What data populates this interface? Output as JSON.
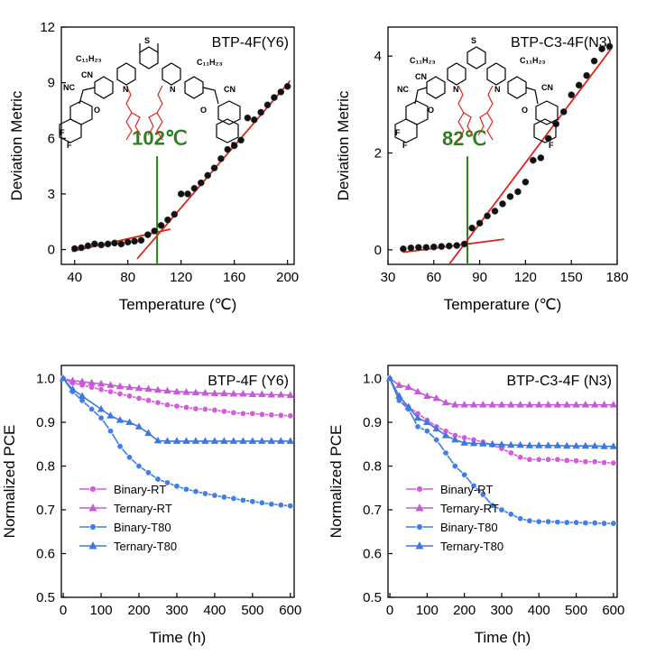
{
  "colors": {
    "fit_line": "#e0241b",
    "threshold_line": "#2e7d1e",
    "dots": "#111111",
    "binary_rt": "#d65bdc",
    "ternary_rt": "#c55ad8",
    "binary_t80": "#3f7fe6",
    "ternary_t80": "#3d78e0"
  },
  "molecules": {
    "y6": {
      "alkyl": "C₁₁H₂₃",
      "cn": "CN",
      "nc": "NC",
      "s": "S",
      "n": "N",
      "o": "O",
      "f": "F"
    },
    "n3": {
      "alkyl": "C₁₁H₂₃",
      "cn": "CN",
      "nc": "NC",
      "s": "S",
      "n": "N",
      "o": "O",
      "f": "F"
    }
  },
  "chart_data": [
    {
      "id": "dm-y6",
      "type": "scatter",
      "title": "BTP-4F(Y6)",
      "xlabel": "Temperature (℃)",
      "ylabel": "Deviation Metric",
      "xlim": [
        30,
        205
      ],
      "ylim": [
        -0.8,
        12
      ],
      "xticks": [
        40,
        80,
        120,
        160,
        200
      ],
      "yticks": [
        0,
        3,
        6,
        9,
        12
      ],
      "annotation": "102℃",
      "threshold_x": 102,
      "x": [
        40,
        45,
        50,
        55,
        60,
        65,
        70,
        75,
        80,
        85,
        90,
        95,
        100,
        105,
        110,
        115,
        120,
        125,
        130,
        135,
        140,
        145,
        150,
        155,
        160,
        165,
        170,
        175,
        180,
        185,
        190,
        195,
        200
      ],
      "y": [
        0.05,
        0.1,
        0.2,
        0.3,
        0.25,
        0.3,
        0.35,
        0.3,
        0.4,
        0.45,
        0.5,
        0.8,
        1.0,
        1.3,
        1.6,
        1.9,
        3.0,
        3.0,
        3.3,
        3.6,
        4.0,
        4.4,
        4.9,
        5.4,
        5.6,
        5.9,
        7.1,
        7.0,
        7.4,
        7.8,
        8.2,
        8.5,
        8.8
      ],
      "fit_lines": [
        {
          "x": [
            38,
            112
          ],
          "y": [
            -0.1,
            1.1
          ]
        },
        {
          "x": [
            87,
            202
          ],
          "y": [
            -0.5,
            9.1
          ]
        }
      ]
    },
    {
      "id": "dm-n3",
      "type": "scatter",
      "title": "BTP-C3-4F(N3)",
      "xlabel": "Temperature (℃)",
      "ylabel": "Deviation Metric",
      "xlim": [
        30,
        180
      ],
      "ylim": [
        -0.3,
        4.6
      ],
      "xticks": [
        30,
        60,
        90,
        120,
        150,
        180
      ],
      "yticks": [
        0,
        2,
        4
      ],
      "annotation": "82℃",
      "threshold_x": 82,
      "x": [
        40,
        45,
        50,
        55,
        60,
        65,
        70,
        75,
        80,
        85,
        90,
        95,
        100,
        105,
        110,
        115,
        120,
        125,
        130,
        135,
        140,
        145,
        150,
        155,
        160,
        165,
        170,
        175
      ],
      "y": [
        0.02,
        0.04,
        0.05,
        0.05,
        0.06,
        0.07,
        0.08,
        0.09,
        0.12,
        0.45,
        0.55,
        0.7,
        0.8,
        0.95,
        1.1,
        1.2,
        1.4,
        1.85,
        1.9,
        2.3,
        2.6,
        2.85,
        3.2,
        3.4,
        3.6,
        3.9,
        4.15,
        4.2
      ],
      "fit_lines": [
        {
          "x": [
            40,
            106
          ],
          "y": [
            -0.05,
            0.22
          ]
        },
        {
          "x": [
            70,
            176
          ],
          "y": [
            -0.3,
            4.15
          ]
        }
      ]
    },
    {
      "id": "pce-y6",
      "type": "line",
      "title": "BTP-4F (Y6)",
      "xlabel": "Time (h)",
      "ylabel": "Normalized PCE",
      "xlim": [
        -5,
        610
      ],
      "ylim": [
        0.5,
        1.03
      ],
      "xticks": [
        0,
        100,
        200,
        300,
        400,
        500,
        600
      ],
      "yticks": [
        0.5,
        0.6,
        0.7,
        0.8,
        0.9,
        1.0
      ],
      "series": [
        {
          "name": "Binary-RT",
          "marker": "circle",
          "color_key": "binary_rt",
          "x": [
            0,
            25,
            50,
            75,
            100,
            125,
            150,
            175,
            200,
            225,
            250,
            275,
            300,
            325,
            350,
            375,
            400,
            425,
            450,
            475,
            500,
            525,
            550,
            575,
            600
          ],
          "y": [
            1.0,
            0.99,
            0.985,
            0.98,
            0.975,
            0.97,
            0.965,
            0.96,
            0.955,
            0.95,
            0.945,
            0.94,
            0.937,
            0.934,
            0.931,
            0.93,
            0.928,
            0.925,
            0.922,
            0.92,
            0.92,
            0.918,
            0.917,
            0.916,
            0.915
          ]
        },
        {
          "name": "Ternary-RT",
          "marker": "triangle",
          "color_key": "ternary_rt",
          "x": [
            0,
            25,
            50,
            75,
            100,
            125,
            150,
            175,
            200,
            225,
            250,
            275,
            300,
            325,
            350,
            375,
            400,
            425,
            450,
            475,
            500,
            525,
            550,
            575,
            600
          ],
          "y": [
            1.0,
            0.995,
            0.993,
            0.99,
            0.988,
            0.985,
            0.982,
            0.98,
            0.978,
            0.976,
            0.974,
            0.972,
            0.97,
            0.969,
            0.968,
            0.967,
            0.966,
            0.966,
            0.965,
            0.965,
            0.964,
            0.964,
            0.963,
            0.963,
            0.962
          ]
        },
        {
          "name": "Binary-T80",
          "marker": "circle",
          "color_key": "binary_t80",
          "x": [
            0,
            25,
            50,
            75,
            100,
            125,
            150,
            175,
            200,
            225,
            250,
            275,
            300,
            325,
            350,
            375,
            400,
            425,
            450,
            475,
            500,
            525,
            550,
            575,
            600
          ],
          "y": [
            1.0,
            0.97,
            0.95,
            0.93,
            0.91,
            0.88,
            0.845,
            0.82,
            0.8,
            0.785,
            0.77,
            0.762,
            0.754,
            0.747,
            0.742,
            0.737,
            0.733,
            0.729,
            0.726,
            0.722,
            0.719,
            0.716,
            0.713,
            0.711,
            0.709
          ]
        },
        {
          "name": "Ternary-T80",
          "marker": "triangle",
          "color_key": "ternary_t80",
          "x": [
            0,
            25,
            50,
            100,
            125,
            150,
            175,
            200,
            225,
            250,
            275,
            300,
            325,
            350,
            375,
            400,
            425,
            450,
            475,
            500,
            525,
            550,
            575,
            600
          ],
          "y": [
            1.0,
            0.975,
            0.96,
            0.93,
            0.915,
            0.905,
            0.9,
            0.89,
            0.875,
            0.858,
            0.857,
            0.857,
            0.857,
            0.857,
            0.857,
            0.857,
            0.857,
            0.857,
            0.857,
            0.857,
            0.857,
            0.857,
            0.857,
            0.857
          ]
        }
      ]
    },
    {
      "id": "pce-n3",
      "type": "line",
      "title": "BTP-C3-4F (N3)",
      "xlabel": "Time (h)",
      "ylabel": "Normalized PCE",
      "xlim": [
        -5,
        610
      ],
      "ylim": [
        0.5,
        1.03
      ],
      "xticks": [
        0,
        100,
        200,
        300,
        400,
        500,
        600
      ],
      "yticks": [
        0.5,
        0.6,
        0.7,
        0.8,
        0.9,
        1.0
      ],
      "series": [
        {
          "name": "Binary-RT",
          "marker": "circle",
          "color_key": "binary_rt",
          "x": [
            0,
            25,
            50,
            75,
            100,
            125,
            150,
            175,
            200,
            225,
            250,
            275,
            300,
            325,
            350,
            375,
            400,
            425,
            450,
            475,
            500,
            525,
            550,
            575,
            600
          ],
          "y": [
            1.0,
            0.95,
            0.935,
            0.92,
            0.905,
            0.89,
            0.88,
            0.87,
            0.865,
            0.86,
            0.855,
            0.848,
            0.84,
            0.83,
            0.82,
            0.815,
            0.815,
            0.815,
            0.815,
            0.813,
            0.812,
            0.81,
            0.81,
            0.808,
            0.807
          ]
        },
        {
          "name": "Ternary-RT",
          "marker": "triangle",
          "color_key": "ternary_rt",
          "x": [
            0,
            25,
            50,
            75,
            100,
            125,
            150,
            175,
            200,
            225,
            250,
            275,
            300,
            325,
            350,
            375,
            400,
            425,
            450,
            475,
            500,
            525,
            550,
            575,
            600
          ],
          "y": [
            1.0,
            0.985,
            0.98,
            0.97,
            0.96,
            0.955,
            0.945,
            0.94,
            0.94,
            0.94,
            0.94,
            0.94,
            0.94,
            0.94,
            0.94,
            0.94,
            0.94,
            0.94,
            0.94,
            0.94,
            0.94,
            0.94,
            0.94,
            0.94,
            0.94
          ]
        },
        {
          "name": "Binary-T80",
          "marker": "circle",
          "color_key": "binary_t80",
          "x": [
            0,
            25,
            50,
            75,
            100,
            125,
            150,
            175,
            200,
            225,
            250,
            275,
            300,
            325,
            350,
            375,
            400,
            425,
            450,
            475,
            500,
            525,
            550,
            575,
            600
          ],
          "y": [
            1.0,
            0.95,
            0.93,
            0.89,
            0.88,
            0.86,
            0.83,
            0.8,
            0.78,
            0.755,
            0.735,
            0.71,
            0.7,
            0.69,
            0.68,
            0.675,
            0.673,
            0.673,
            0.672,
            0.671,
            0.671,
            0.67,
            0.67,
            0.669,
            0.669
          ]
        },
        {
          "name": "Ternary-T80",
          "marker": "triangle",
          "color_key": "ternary_t80",
          "x": [
            0,
            25,
            50,
            75,
            100,
            125,
            150,
            175,
            200,
            225,
            250,
            275,
            300,
            325,
            350,
            375,
            400,
            425,
            450,
            475,
            500,
            525,
            550,
            575,
            600
          ],
          "y": [
            1.0,
            0.96,
            0.935,
            0.91,
            0.9,
            0.885,
            0.87,
            0.86,
            0.853,
            0.852,
            0.851,
            0.85,
            0.849,
            0.848,
            0.848,
            0.847,
            0.847,
            0.847,
            0.847,
            0.846,
            0.846,
            0.846,
            0.846,
            0.845,
            0.845
          ]
        }
      ]
    }
  ]
}
